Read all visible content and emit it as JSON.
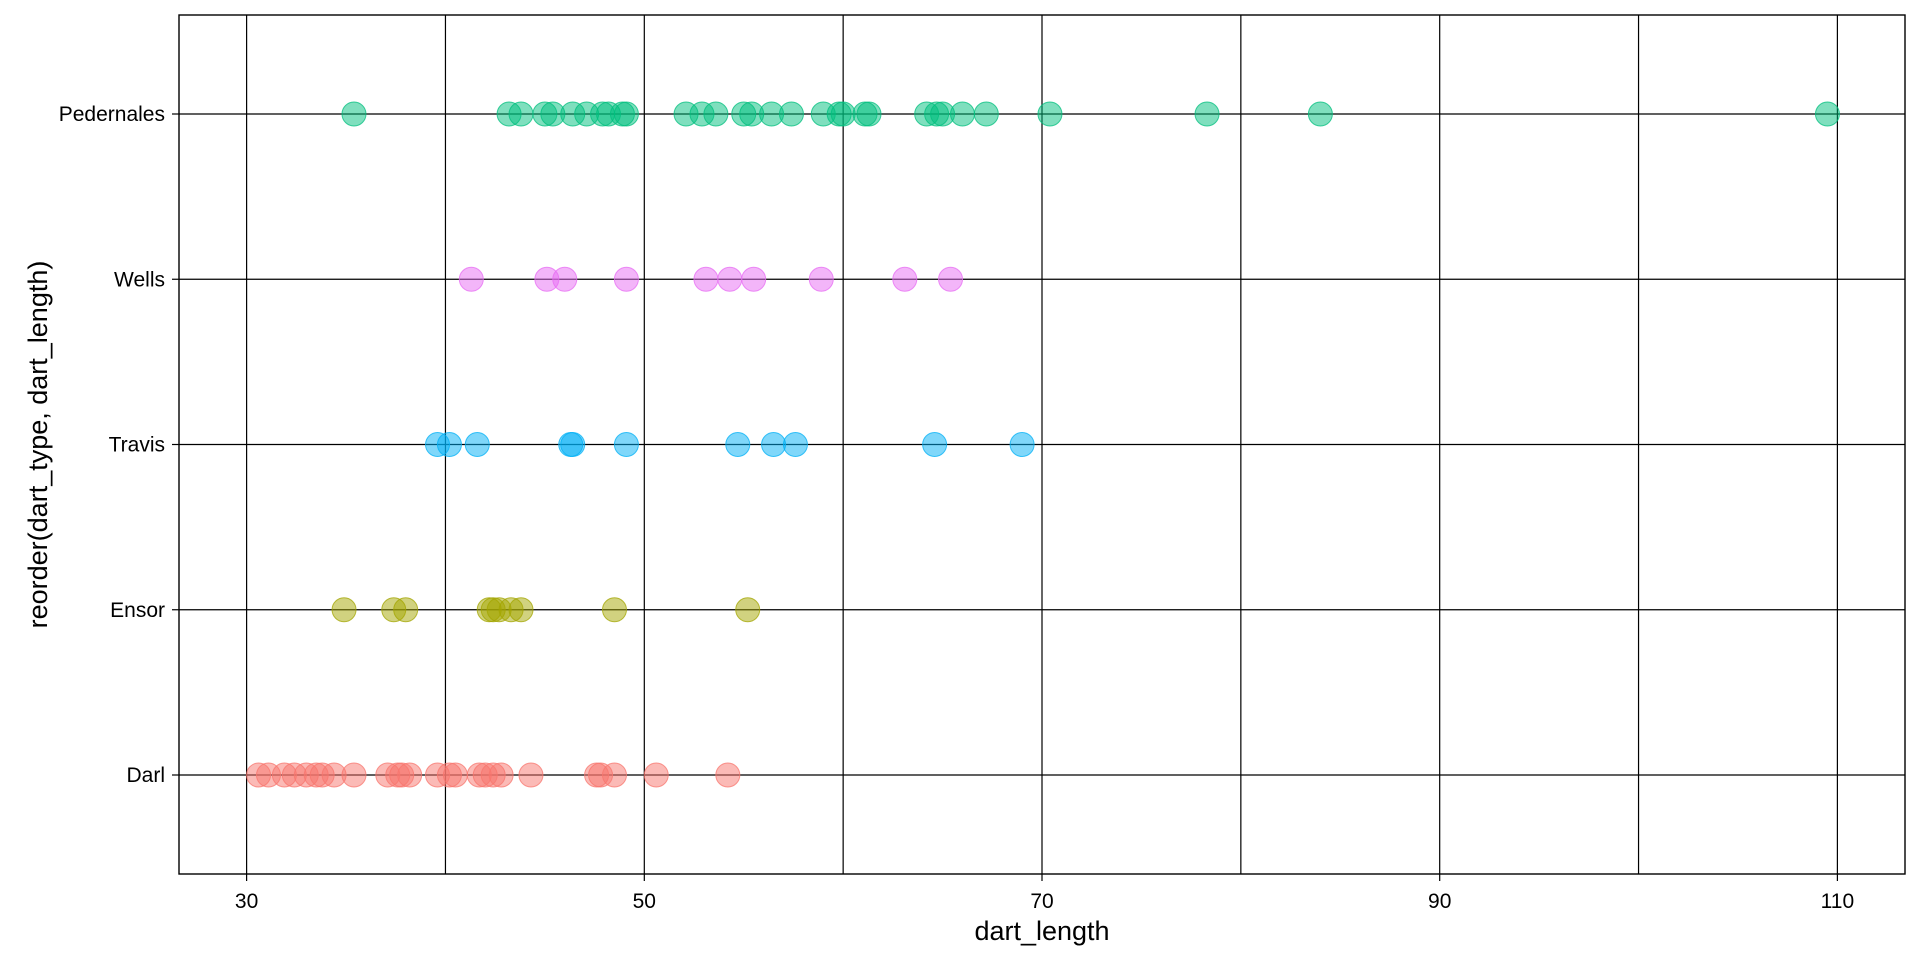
{
  "chart_data": {
    "type": "scatter",
    "title": "",
    "xlabel": "dart_length",
    "ylabel": "reorder(dart_type, dart_length)",
    "xlim": [
      26.6,
      113.4
    ],
    "x_ticks": [
      30,
      50,
      70,
      90,
      110
    ],
    "x_tick_labels": [
      "30",
      "50",
      "70",
      "90",
      "110"
    ],
    "x_grid": [
      30,
      40,
      50,
      60,
      70,
      80,
      90,
      100,
      110
    ],
    "categories": [
      "Darl",
      "Ensor",
      "Travis",
      "Wells",
      "Pedernales"
    ],
    "grid": true,
    "legend": "none",
    "point_opacity": 0.5,
    "series": [
      {
        "category": "Darl",
        "color": "#F8766D",
        "values": [
          30.6,
          31.1,
          31.9,
          32.4,
          33.0,
          33.5,
          33.8,
          34.4,
          35.4,
          37.1,
          37.6,
          37.8,
          38.2,
          39.6,
          40.2,
          40.5,
          41.7,
          42.0,
          42.4,
          42.8,
          44.3,
          47.6,
          47.8,
          48.5,
          50.6,
          54.2
        ]
      },
      {
        "category": "Ensor",
        "color": "#A3A500",
        "values": [
          34.9,
          37.4,
          38.0,
          42.2,
          42.4,
          42.7,
          43.3,
          43.8,
          48.5,
          55.2
        ]
      },
      {
        "category": "Travis",
        "color": "#00B0F6",
        "values": [
          39.6,
          40.2,
          41.6,
          46.3,
          46.4,
          49.1,
          54.7,
          56.5,
          57.6,
          64.6,
          69.0
        ]
      },
      {
        "category": "Wells",
        "color": "#E76BF3",
        "values": [
          41.3,
          45.1,
          46.0,
          49.1,
          53.1,
          54.3,
          55.5,
          58.9,
          63.1,
          65.4
        ]
      },
      {
        "category": "Pedernales",
        "color": "#00BF7D",
        "values": [
          35.4,
          43.2,
          43.8,
          45.0,
          45.4,
          46.4,
          47.1,
          47.9,
          48.2,
          48.9,
          49.1,
          52.1,
          52.9,
          53.6,
          55.0,
          55.4,
          56.4,
          57.4,
          59.0,
          59.8,
          60.0,
          61.1,
          61.3,
          64.2,
          64.7,
          65.0,
          66.0,
          67.2,
          70.4,
          78.3,
          84.0,
          109.5
        ]
      }
    ]
  }
}
